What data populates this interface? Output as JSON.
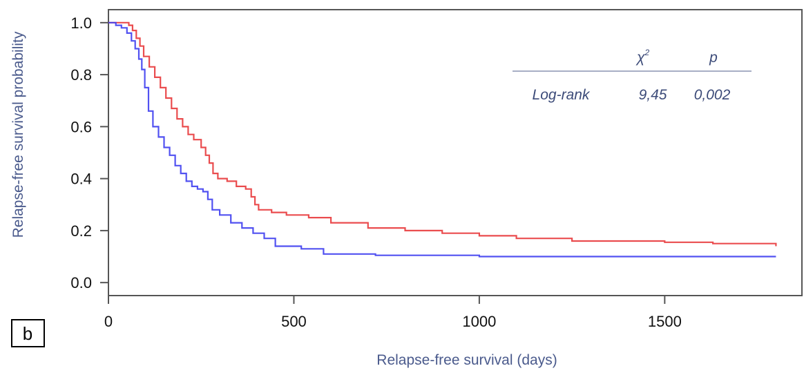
{
  "panel_label": "b",
  "stats_table": {
    "header_chi": "χ",
    "header_chi_sup": "2",
    "header_p": "p",
    "row_label": "Log-rank",
    "chi_value": "9,45",
    "p_value": "0,002"
  },
  "colors": {
    "group_red": "#e8383b",
    "group_blue": "#3e3ef0",
    "frame": "#555555",
    "rule": "#8a94b0"
  },
  "chart_data": {
    "type": "line",
    "step": true,
    "xlabel": "Relapse-free survival  (days)",
    "ylabel": "Relapse-free survival probability",
    "xlim": [
      0,
      1870
    ],
    "ylim": [
      -0.05,
      1.05
    ],
    "xticks": [
      0,
      500,
      1000,
      1500
    ],
    "xtick_labels": [
      "0",
      "500",
      "1000",
      "1500"
    ],
    "yticks": [
      0.0,
      0.2,
      0.4,
      0.6,
      0.8,
      1.0
    ],
    "ytick_labels": [
      "0.0",
      "0.2",
      "0.4",
      "0.6",
      "0.8",
      "1.0"
    ],
    "grid": false,
    "series": [
      {
        "color": "#e8383b",
        "points": [
          [
            0,
            1.0
          ],
          [
            40,
            1.0
          ],
          [
            55,
            0.99
          ],
          [
            65,
            0.97
          ],
          [
            75,
            0.94
          ],
          [
            85,
            0.91
          ],
          [
            95,
            0.87
          ],
          [
            110,
            0.83
          ],
          [
            125,
            0.79
          ],
          [
            140,
            0.75
          ],
          [
            155,
            0.71
          ],
          [
            170,
            0.67
          ],
          [
            185,
            0.63
          ],
          [
            200,
            0.6
          ],
          [
            215,
            0.57
          ],
          [
            230,
            0.55
          ],
          [
            250,
            0.52
          ],
          [
            262,
            0.49
          ],
          [
            272,
            0.46
          ],
          [
            282,
            0.42
          ],
          [
            295,
            0.4
          ],
          [
            320,
            0.39
          ],
          [
            345,
            0.37
          ],
          [
            370,
            0.36
          ],
          [
            385,
            0.33
          ],
          [
            395,
            0.3
          ],
          [
            405,
            0.28
          ],
          [
            440,
            0.27
          ],
          [
            480,
            0.26
          ],
          [
            540,
            0.25
          ],
          [
            600,
            0.23
          ],
          [
            700,
            0.21
          ],
          [
            800,
            0.2
          ],
          [
            900,
            0.19
          ],
          [
            1000,
            0.18
          ],
          [
            1100,
            0.17
          ],
          [
            1250,
            0.16
          ],
          [
            1500,
            0.155
          ],
          [
            1630,
            0.15
          ],
          [
            1800,
            0.14
          ]
        ]
      },
      {
        "color": "#3e3ef0",
        "points": [
          [
            0,
            1.0
          ],
          [
            20,
            0.99
          ],
          [
            35,
            0.98
          ],
          [
            50,
            0.96
          ],
          [
            62,
            0.93
          ],
          [
            72,
            0.9
          ],
          [
            82,
            0.86
          ],
          [
            90,
            0.82
          ],
          [
            98,
            0.75
          ],
          [
            108,
            0.66
          ],
          [
            120,
            0.6
          ],
          [
            135,
            0.56
          ],
          [
            150,
            0.52
          ],
          [
            165,
            0.49
          ],
          [
            180,
            0.45
          ],
          [
            195,
            0.42
          ],
          [
            210,
            0.39
          ],
          [
            225,
            0.37
          ],
          [
            240,
            0.36
          ],
          [
            255,
            0.35
          ],
          [
            268,
            0.32
          ],
          [
            280,
            0.28
          ],
          [
            300,
            0.26
          ],
          [
            330,
            0.23
          ],
          [
            360,
            0.21
          ],
          [
            390,
            0.19
          ],
          [
            420,
            0.17
          ],
          [
            450,
            0.14
          ],
          [
            520,
            0.13
          ],
          [
            580,
            0.11
          ],
          [
            720,
            0.105
          ],
          [
            900,
            0.105
          ],
          [
            1000,
            0.1
          ],
          [
            1800,
            0.1
          ]
        ]
      }
    ]
  }
}
